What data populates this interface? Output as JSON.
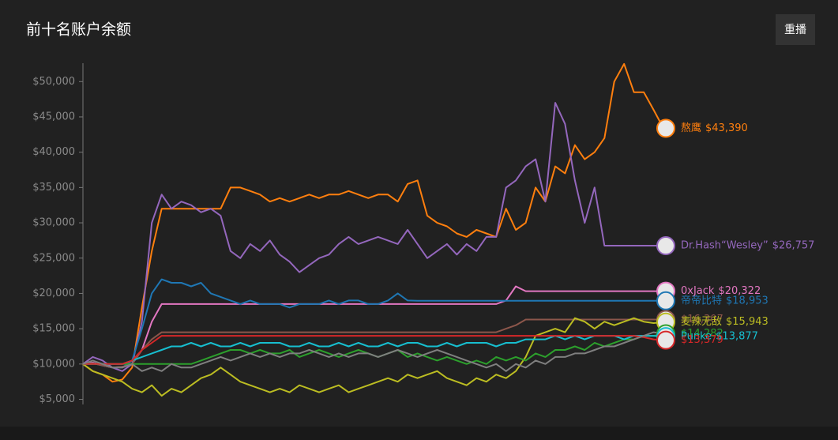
{
  "header": {
    "title": "前十名账户余额",
    "button": "重播"
  },
  "chart_data": {
    "type": "line",
    "ylim": [
      4500,
      53500
    ],
    "yticks": [
      {
        "value": 5000,
        "label": "$5,000"
      },
      {
        "value": 10000,
        "label": "$10,000"
      },
      {
        "value": 15000,
        "label": "$15,000"
      },
      {
        "value": 20000,
        "label": "$20,000"
      },
      {
        "value": 25000,
        "label": "$25,000"
      },
      {
        "value": 30000,
        "label": "$30,000"
      },
      {
        "value": 35000,
        "label": "$35,000"
      },
      {
        "value": 40000,
        "label": "$40,000"
      },
      {
        "value": 45000,
        "label": "$45,000"
      },
      {
        "value": 50000,
        "label": "$50,000"
      }
    ],
    "series": [
      {
        "name": "熬鹰",
        "color": "#ff7f0e",
        "end_label": "$43,390",
        "values": [
          10000,
          9000,
          8500,
          7500,
          7800,
          9500,
          18000,
          26000,
          32000,
          32000,
          32000,
          32000,
          32000,
          32000,
          32000,
          35000,
          35000,
          34500,
          34000,
          33000,
          33500,
          33000,
          33500,
          34000,
          33500,
          34000,
          34000,
          34500,
          34000,
          33500,
          34000,
          34000,
          33000,
          35500,
          36000,
          31000,
          30000,
          29500,
          28500,
          28000,
          29000,
          28500,
          28000,
          32000,
          29000,
          30000,
          35000,
          33000,
          38000,
          37000,
          41000,
          39000,
          40000,
          42000,
          50000,
          52500,
          48500,
          48500,
          46000,
          43390
        ]
      },
      {
        "name": "Dr.Hash“Wesley”",
        "color": "#9467bd",
        "end_label": "$26,757",
        "values": [
          10000,
          11000,
          10500,
          9500,
          9000,
          10000,
          16000,
          30000,
          34000,
          32000,
          33000,
          32500,
          31500,
          32000,
          31000,
          26000,
          25000,
          27000,
          26000,
          27500,
          25500,
          24500,
          23000,
          24000,
          25000,
          25500,
          27000,
          28000,
          27000,
          27500,
          28000,
          27500,
          27000,
          29000,
          27000,
          25000,
          26000,
          27000,
          25500,
          27000,
          26000,
          28000,
          28000,
          35000,
          36000,
          38000,
          39000,
          33000,
          47000,
          44000,
          36000,
          30000,
          35000,
          26757,
          26757,
          26757,
          26757,
          26757,
          26757,
          26757
        ]
      },
      {
        "name": "0xJack",
        "color": "#e377c2",
        "end_label": "$20,322",
        "values": [
          10000,
          10200,
          9800,
          9500,
          9600,
          10000,
          12000,
          16000,
          18500,
          18500,
          18500,
          18500,
          18500,
          18500,
          18500,
          18500,
          18500,
          18500,
          18500,
          18500,
          18500,
          18500,
          18500,
          18500,
          18500,
          18500,
          18500,
          18500,
          18500,
          18500,
          18500,
          18500,
          18500,
          18500,
          18500,
          18500,
          18500,
          18500,
          18500,
          18500,
          18500,
          18500,
          18500,
          19000,
          21000,
          20322,
          20322,
          20322,
          20322,
          20322,
          20322,
          20322,
          20322,
          20322,
          20322,
          20322,
          20322,
          20322,
          20322,
          20322
        ]
      },
      {
        "name": "帝帝比特",
        "color": "#1f77b4",
        "end_label": "$18,953",
        "values": [
          10000,
          10100,
          9800,
          9500,
          9500,
          10500,
          15000,
          20000,
          22000,
          21500,
          21500,
          21000,
          21500,
          20000,
          19500,
          19000,
          18500,
          19000,
          18500,
          18500,
          18500,
          18000,
          18500,
          18500,
          18500,
          19000,
          18500,
          19000,
          19000,
          18500,
          18500,
          19000,
          20000,
          19000,
          18953,
          18953,
          18953,
          18953,
          18953,
          18953,
          18953,
          18953,
          18953,
          18953,
          18953,
          18953,
          18953,
          18953,
          18953,
          18953,
          18953,
          18953,
          18953,
          18953,
          18953,
          18953,
          18953,
          18953,
          18953,
          18953
        ]
      },
      {
        "name": null,
        "color": "#8c564b",
        "end_label": "$16,307",
        "values": [
          10000,
          10100,
          9800,
          9500,
          9600,
          10000,
          12000,
          13500,
          14500,
          14500,
          14500,
          14500,
          14500,
          14500,
          14500,
          14500,
          14500,
          14500,
          14500,
          14500,
          14500,
          14500,
          14500,
          14500,
          14500,
          14500,
          14500,
          14500,
          14500,
          14500,
          14500,
          14500,
          14500,
          14500,
          14500,
          14500,
          14500,
          14500,
          14500,
          14500,
          14500,
          14500,
          14500,
          15000,
          15500,
          16307,
          16307,
          16307,
          16307,
          16307,
          16307,
          16307,
          16307,
          16307,
          16307,
          16307,
          16307,
          16307,
          16307,
          16307
        ]
      },
      {
        "name": "麦辣无敌",
        "color": "#bcbd22",
        "end_label": "$15,943",
        "values": [
          10000,
          9000,
          8500,
          8000,
          7500,
          6500,
          6000,
          7000,
          5500,
          6500,
          6000,
          7000,
          8000,
          8500,
          9500,
          8500,
          7500,
          7000,
          6500,
          6000,
          6500,
          6000,
          7000,
          6500,
          6000,
          6500,
          7000,
          6000,
          6500,
          7000,
          7500,
          8000,
          7500,
          8500,
          8000,
          8500,
          9000,
          8000,
          7500,
          7000,
          8000,
          7500,
          8500,
          8000,
          9000,
          11000,
          14000,
          14500,
          15000,
          14500,
          16500,
          16000,
          15000,
          16000,
          15500,
          16000,
          16500,
          16000,
          15800,
          15943
        ]
      },
      {
        "name": null,
        "color": "#2ca02c",
        "end_label": "$14,282",
        "values": [
          10000,
          10000,
          10000,
          10000,
          10000,
          10000,
          10000,
          10000,
          10000,
          10000,
          10000,
          10000,
          10500,
          11000,
          11500,
          12000,
          12000,
          11500,
          12000,
          11500,
          11500,
          12000,
          11000,
          11500,
          12000,
          11500,
          11000,
          11500,
          12000,
          11500,
          11000,
          11500,
          12000,
          11000,
          11500,
          11000,
          10500,
          11000,
          10500,
          10000,
          10500,
          10000,
          11000,
          10500,
          11000,
          10500,
          11500,
          11000,
          12000,
          12000,
          12500,
          12000,
          13000,
          12500,
          13000,
          13500,
          13500,
          14000,
          14000,
          14282
        ]
      },
      {
        "name": "Punke",
        "color": "#17becf",
        "end_label": "$13,877",
        "values": [
          10000,
          10000,
          10000,
          10000,
          10000,
          10500,
          11000,
          11500,
          12000,
          12500,
          12500,
          13000,
          12500,
          13000,
          12500,
          12500,
          13000,
          12500,
          13000,
          13000,
          13000,
          12500,
          12500,
          13000,
          12500,
          12500,
          13000,
          12500,
          13000,
          12500,
          12500,
          13000,
          12500,
          13000,
          13000,
          12500,
          12500,
          13000,
          12500,
          13000,
          13000,
          13000,
          12500,
          13000,
          13000,
          13500,
          13500,
          13500,
          14000,
          13500,
          14000,
          13500,
          14000,
          14000,
          14000,
          13500,
          14000,
          14000,
          14000,
          13877
        ]
      },
      {
        "name": null,
        "color": "#d62728",
        "end_label": "$13,379",
        "values": [
          10000,
          10000,
          10000,
          10000,
          10000,
          10500,
          12000,
          13000,
          14000,
          14000,
          14000,
          14000,
          14000,
          14000,
          14000,
          14000,
          14000,
          14000,
          14000,
          14000,
          14000,
          14000,
          14000,
          14000,
          14000,
          14000,
          14000,
          14000,
          14000,
          14000,
          14000,
          14000,
          14000,
          14000,
          14000,
          14000,
          14000,
          14000,
          14000,
          14000,
          14000,
          14000,
          14000,
          14000,
          14000,
          14000,
          14000,
          14000,
          14000,
          14000,
          14000,
          14000,
          14000,
          14000,
          14000,
          14000,
          14000,
          13800,
          13500,
          13379
        ]
      },
      {
        "name": null,
        "color": "#7f7f7f",
        "values": [
          10000,
          10500,
          10000,
          9500,
          9500,
          10000,
          9000,
          9500,
          9000,
          10000,
          9500,
          9500,
          10000,
          10500,
          11000,
          10500,
          11000,
          11500,
          11000,
          11500,
          11000,
          11500,
          11500,
          12000,
          11500,
          11000,
          11500,
          11000,
          11500,
          11500,
          11000,
          11500,
          12000,
          11500,
          11000,
          11500,
          12000,
          11500,
          11000,
          10500,
          10000,
          9500,
          10000,
          9000,
          10000,
          9500,
          10500,
          10000,
          11000,
          11000,
          11500,
          11500,
          12000,
          12500,
          12500,
          13000,
          13500,
          14000,
          14500,
          14300
        ]
      }
    ]
  }
}
